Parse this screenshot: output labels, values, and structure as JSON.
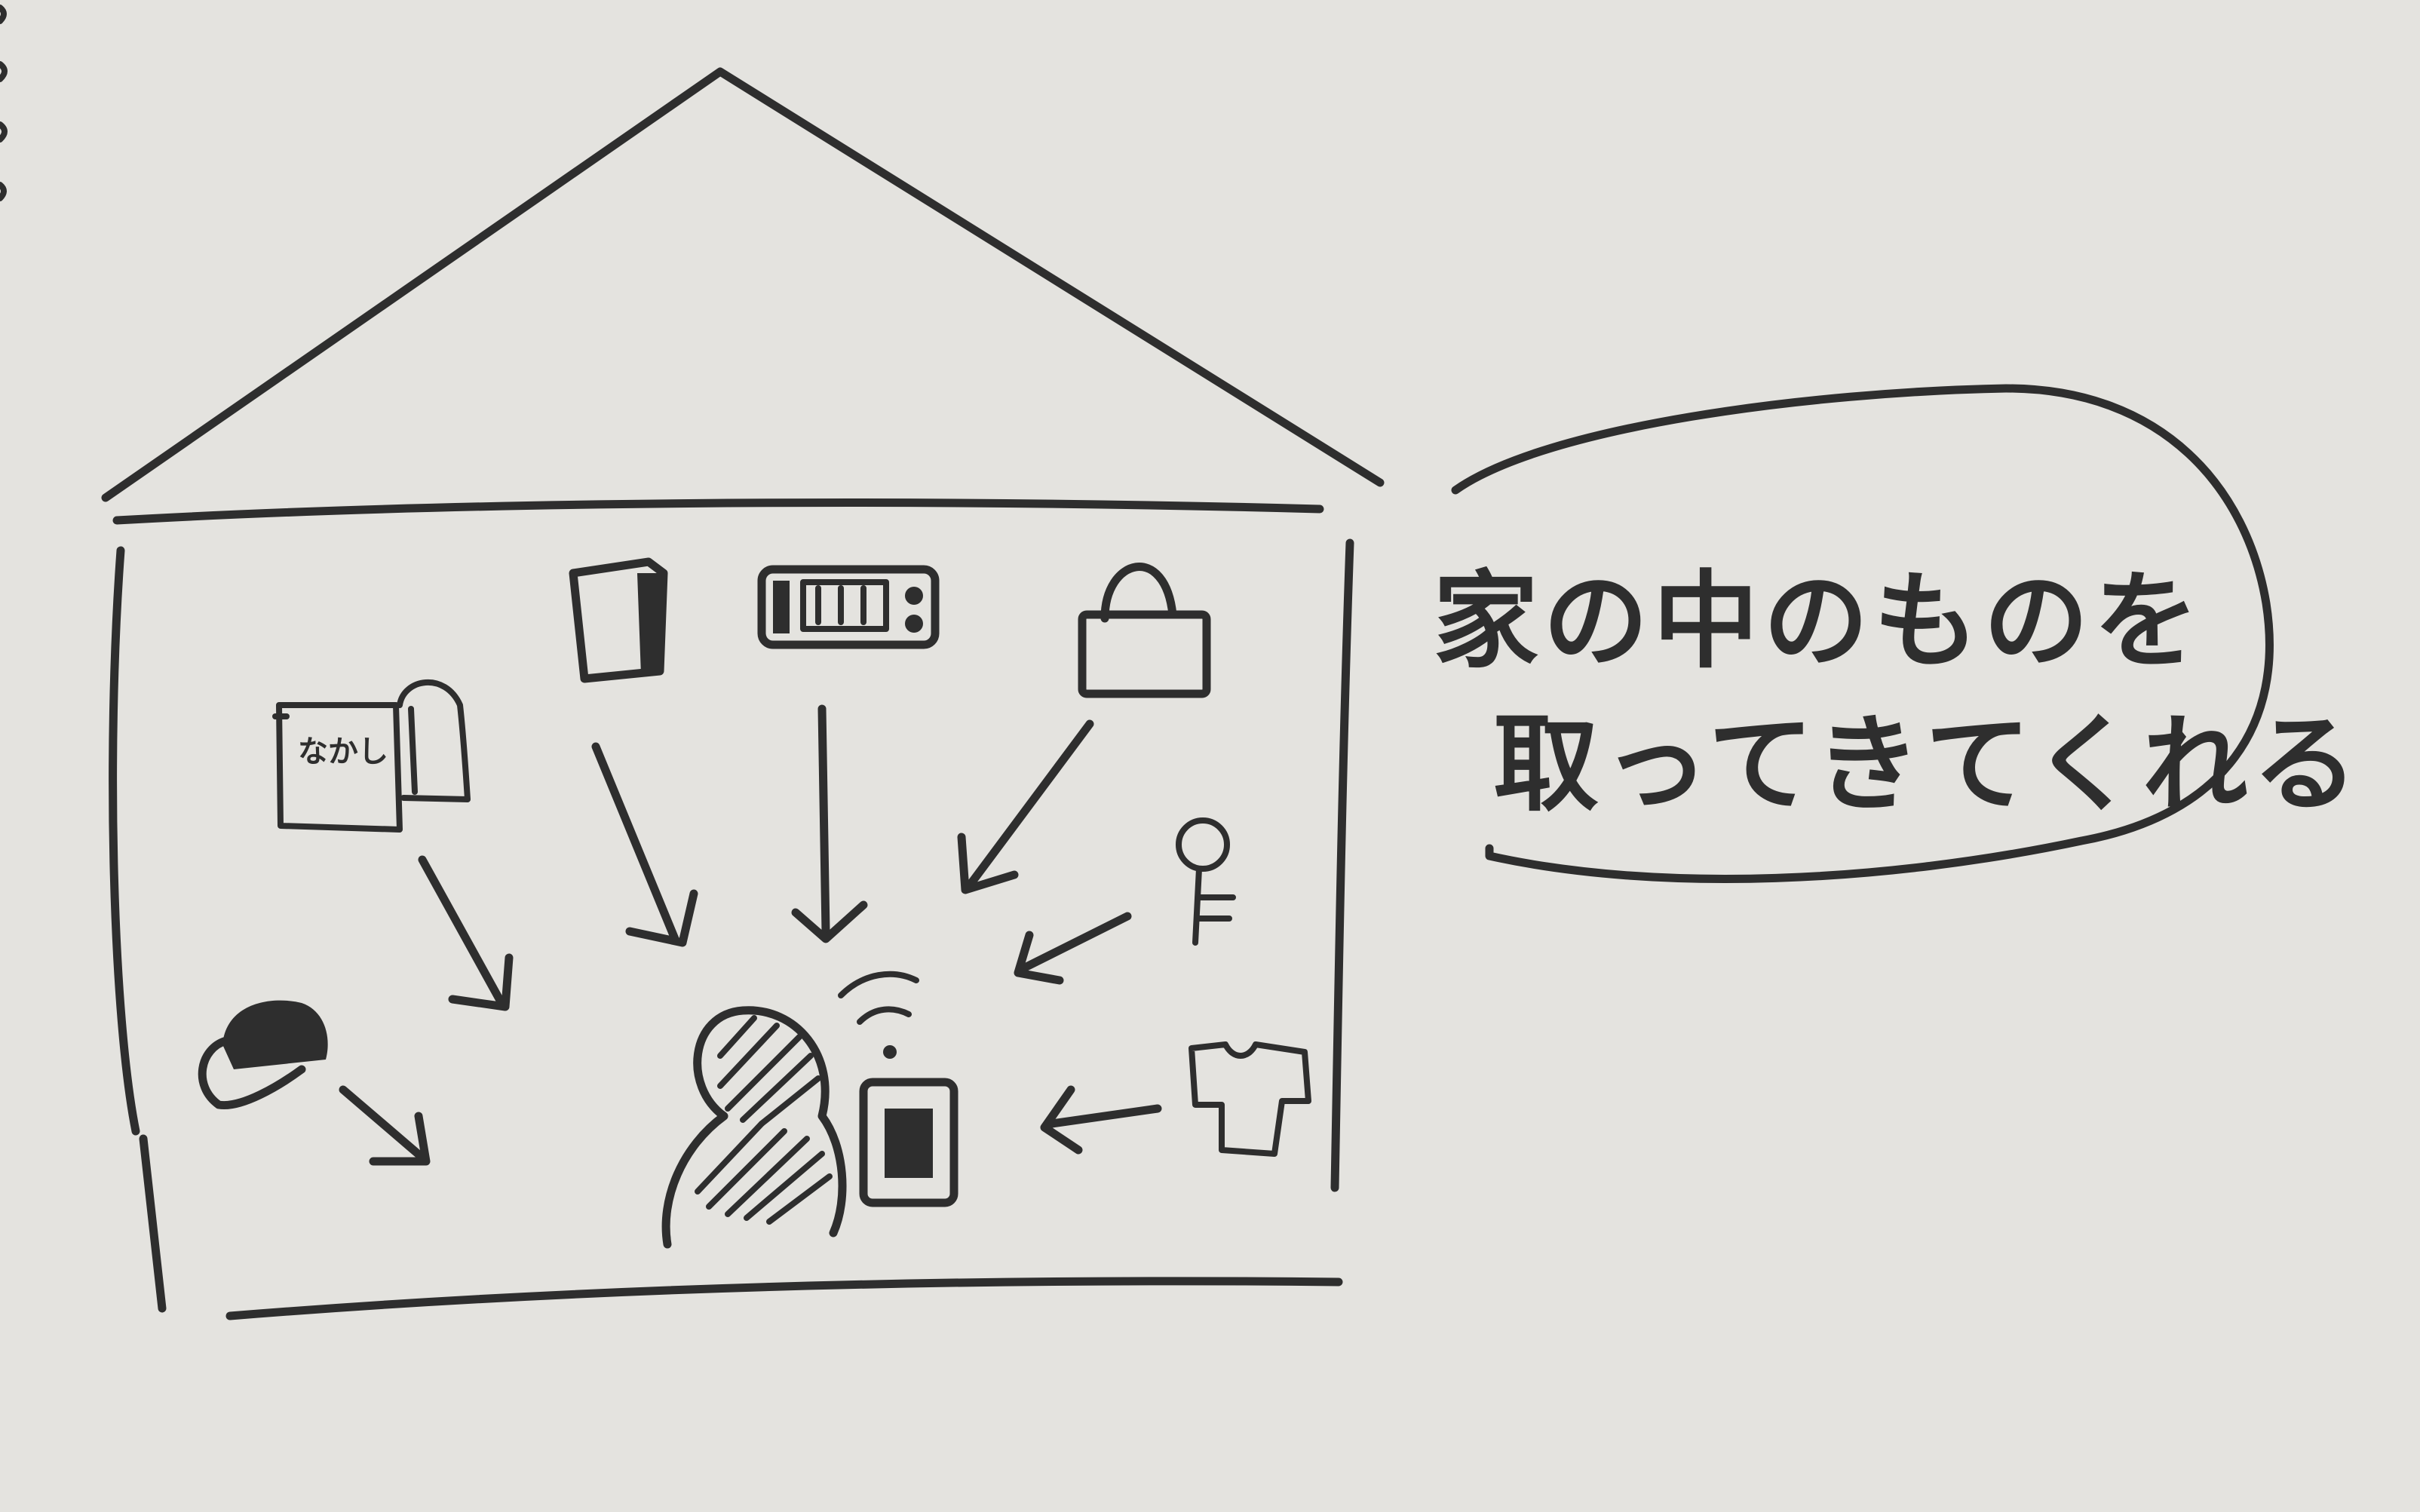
{
  "drawing": {
    "speech": {
      "line1": "家の中のものを",
      "line2": "取ってきてくれる"
    },
    "book_label": "なかし",
    "items": [
      "book-icon",
      "box-icon",
      "microwave-icon",
      "lock-icon",
      "key-icon",
      "tshirt-icon",
      "cap-icon"
    ],
    "center": [
      "person-icon",
      "smartphone-icon",
      "wifi-signal-icon"
    ],
    "ink_color": "#2e2e2e",
    "paper_color": "#e4e3df"
  }
}
